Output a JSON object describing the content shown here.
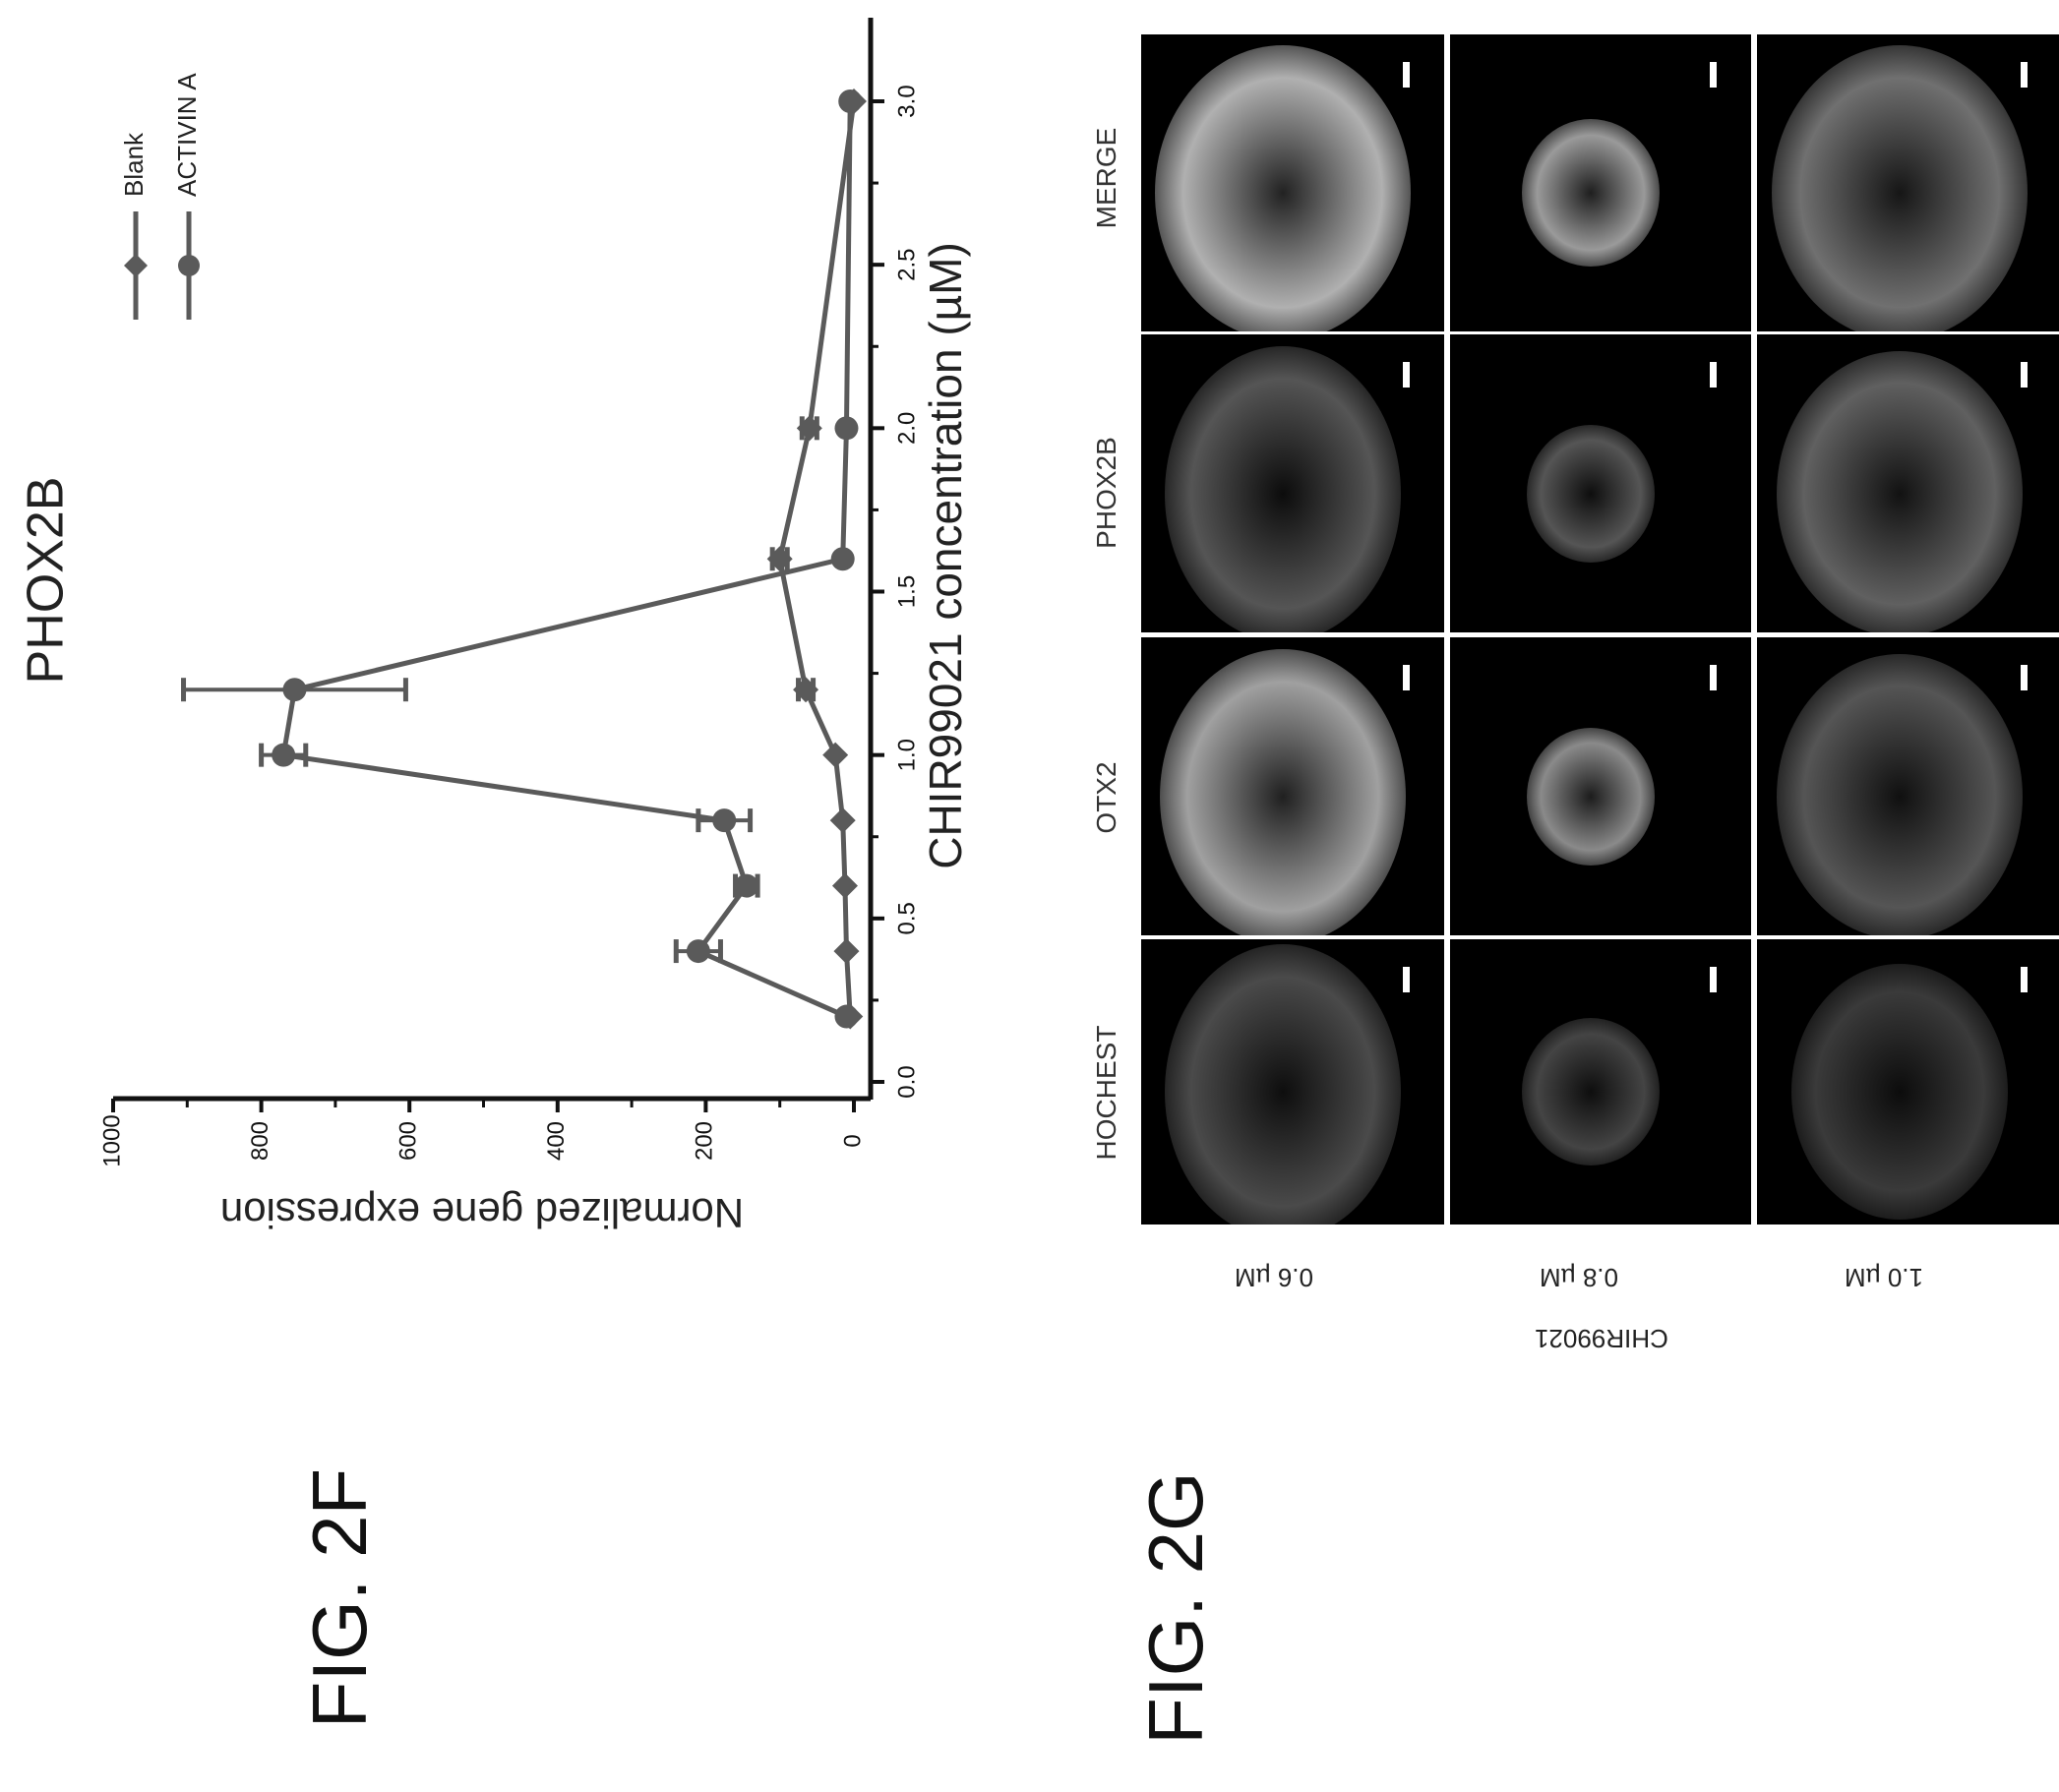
{
  "figure_labels": {
    "f": "FIG. 2F",
    "g": "FIG. 2G"
  },
  "chart_data": {
    "type": "line",
    "title": "PHOX2B",
    "xlabel": "CHIR99021 concentration (µM)",
    "ylabel": "Normalized gene expression",
    "xlim": [
      0.0,
      3.2
    ],
    "ylim": [
      -20,
      1000
    ],
    "x_ticks": [
      "0.0",
      "0.5",
      "1.0",
      "1.5",
      "2.0",
      "2.5",
      "3.0"
    ],
    "y_ticks": [
      "0",
      "200",
      "400",
      "600",
      "800",
      "1000"
    ],
    "series": [
      {
        "name": "Blank",
        "marker": "diamond",
        "color": "#5a5a5a",
        "x": [
          0.2,
          0.4,
          0.6,
          0.8,
          1.0,
          1.2,
          1.6,
          2.0,
          3.0
        ],
        "y": [
          5,
          10,
          12,
          15,
          25,
          65,
          100,
          60,
          0
        ],
        "err": [
          0,
          0,
          0,
          0,
          0,
          10,
          10,
          10,
          0
        ]
      },
      {
        "name": "ACTIVIN A",
        "marker": "circle",
        "color": "#5a5a5a",
        "x": [
          0.2,
          0.4,
          0.6,
          0.8,
          1.0,
          1.2,
          1.6,
          2.0,
          3.0
        ],
        "y": [
          10,
          210,
          145,
          175,
          770,
          755,
          15,
          10,
          5
        ],
        "err": [
          0,
          30,
          15,
          35,
          30,
          150,
          0,
          0,
          0
        ]
      }
    ],
    "legend_position": "top-right",
    "grid": false,
    "orientation_note": ""
  },
  "micrographs": {
    "group_label": "CHIR99021",
    "columns": [
      "HOCHEST",
      "OTX2",
      "PHOX2B",
      "MERGE"
    ],
    "rows": [
      "0.6 µM",
      "0.8 µM",
      "1.0 µM"
    ]
  }
}
